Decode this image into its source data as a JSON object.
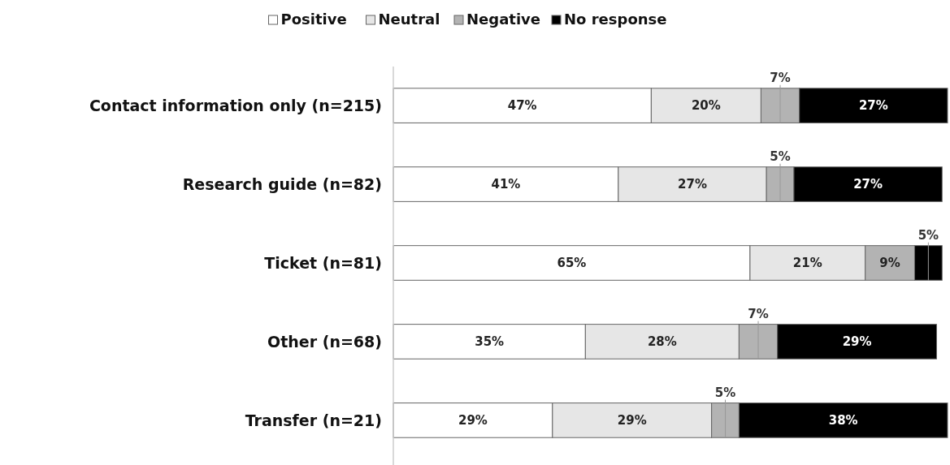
{
  "chart_data": {
    "type": "bar",
    "orientation": "horizontal",
    "stacked": true,
    "legend": "top",
    "categories": [
      "Contact information only (n=215)",
      "Research guide (n=82)",
      "Ticket (n=81)",
      "Other (n=68)",
      "Transfer (n=21)"
    ],
    "series": [
      {
        "name": "Positive",
        "color": "#ffffff",
        "values": [
          47,
          41,
          65,
          35,
          29
        ],
        "value_labels": [
          "47%",
          "41%",
          "65%",
          "35%",
          "29%"
        ]
      },
      {
        "name": "Neutral",
        "color": "#e6e6e6",
        "values": [
          20,
          27,
          21,
          28,
          29
        ],
        "value_labels": [
          "20%",
          "27%",
          "21%",
          "28%",
          "29%"
        ]
      },
      {
        "name": "Negative",
        "color": "#b3b3b3",
        "values": [
          7,
          5,
          9,
          7,
          5
        ],
        "value_labels": [
          "7%",
          "5%",
          "9%",
          "7%",
          "5%"
        ]
      },
      {
        "name": "No response",
        "color": "#000000",
        "values": [
          27,
          27,
          5,
          29,
          38
        ],
        "value_labels": [
          "27%",
          "27%",
          "5%",
          "29%",
          "38%"
        ]
      }
    ]
  }
}
